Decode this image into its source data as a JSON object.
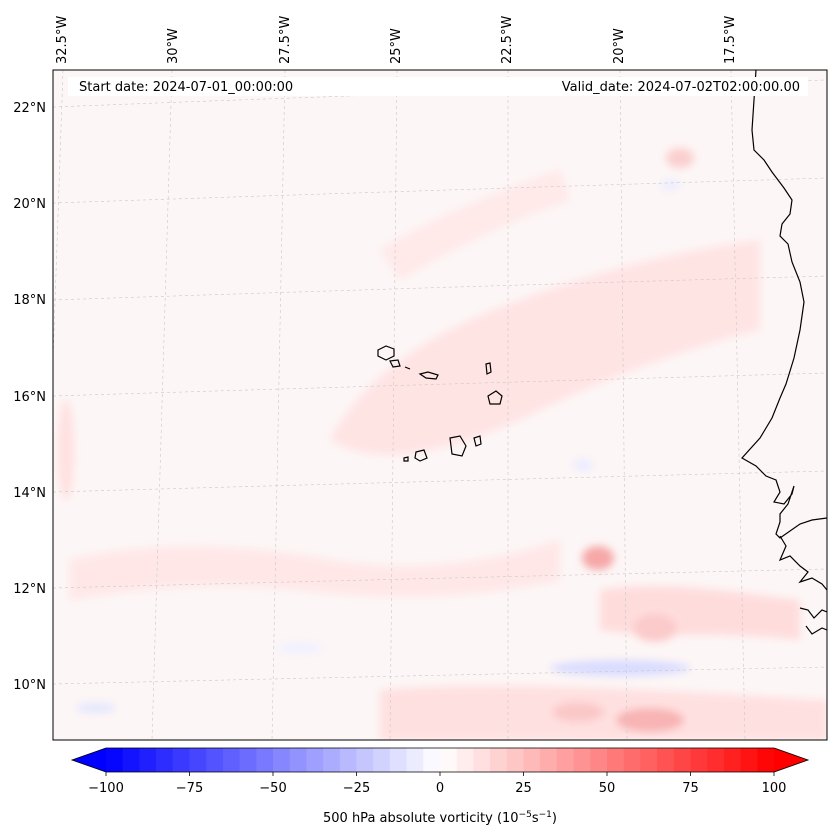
{
  "map": {
    "start_label": "Start date: 2024-07-01_00:00:00",
    "valid_label": "Valid_date: 2024-07-02T02:00:00.00",
    "lon_labels": [
      "32.5°W",
      "30°W",
      "27.5°W",
      "25°W",
      "22.5°W",
      "20°W",
      "17.5°W"
    ],
    "lat_labels": [
      "22°N",
      "20°N",
      "18°N",
      "16°N",
      "14°N",
      "12°N",
      "10°N"
    ]
  },
  "colorbar": {
    "ticks": [
      "−100",
      "−75",
      "−50",
      "−25",
      "0",
      "25",
      "50",
      "75",
      "100"
    ],
    "min": -100,
    "max": 100,
    "label_main": "500 hPa absolute vorticity (10",
    "label_exp1": "−5",
    "label_mid": "s",
    "label_exp2": "−1",
    "label_end": ")"
  },
  "colors": {
    "negative_max": "#0000ff",
    "zero": "#ffffff",
    "positive_max": "#ff0000",
    "coastline": "#000000"
  }
}
